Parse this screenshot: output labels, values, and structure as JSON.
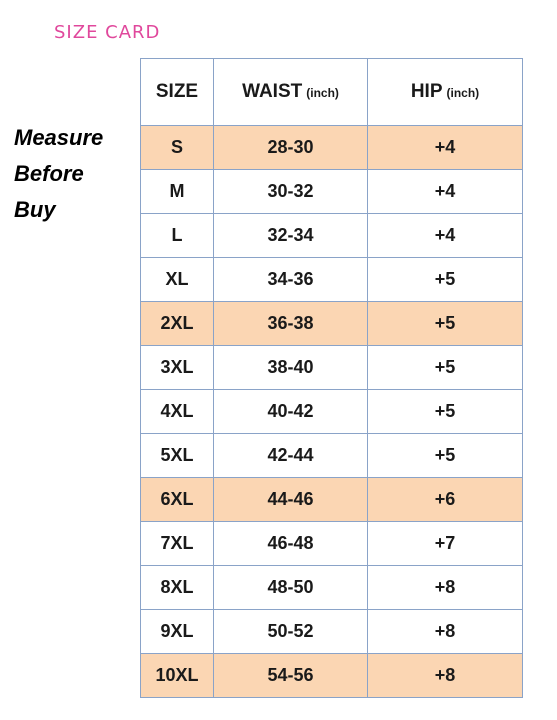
{
  "title": "SIZE CARD",
  "note": [
    "Measure",
    "Before",
    "Buy"
  ],
  "table": {
    "headers": {
      "size": "SIZE",
      "waist": "WAIST",
      "waist_unit": "(inch)",
      "hip": "HIP",
      "hip_unit": "(inch)"
    },
    "highlight_color": "#fbd6b3",
    "rows": [
      {
        "size": "S",
        "waist": "28-30",
        "hip": "+4",
        "highlight": true
      },
      {
        "size": "M",
        "waist": "30-32",
        "hip": "+4",
        "highlight": false
      },
      {
        "size": "L",
        "waist": "32-34",
        "hip": "+4",
        "highlight": false
      },
      {
        "size": "XL",
        "waist": "34-36",
        "hip": "+5",
        "highlight": false
      },
      {
        "size": "2XL",
        "waist": "36-38",
        "hip": "+5",
        "highlight": true
      },
      {
        "size": "3XL",
        "waist": "38-40",
        "hip": "+5",
        "highlight": false
      },
      {
        "size": "4XL",
        "waist": "40-42",
        "hip": "+5",
        "highlight": false
      },
      {
        "size": "5XL",
        "waist": "42-44",
        "hip": "+5",
        "highlight": false
      },
      {
        "size": "6XL",
        "waist": "44-46",
        "hip": "+6",
        "highlight": true
      },
      {
        "size": "7XL",
        "waist": "46-48",
        "hip": "+7",
        "highlight": false
      },
      {
        "size": "8XL",
        "waist": "48-50",
        "hip": "+8",
        "highlight": false
      },
      {
        "size": "9XL",
        "waist": "50-52",
        "hip": "+8",
        "highlight": false
      },
      {
        "size": "10XL",
        "waist": "54-56",
        "hip": "+8",
        "highlight": true
      }
    ]
  }
}
